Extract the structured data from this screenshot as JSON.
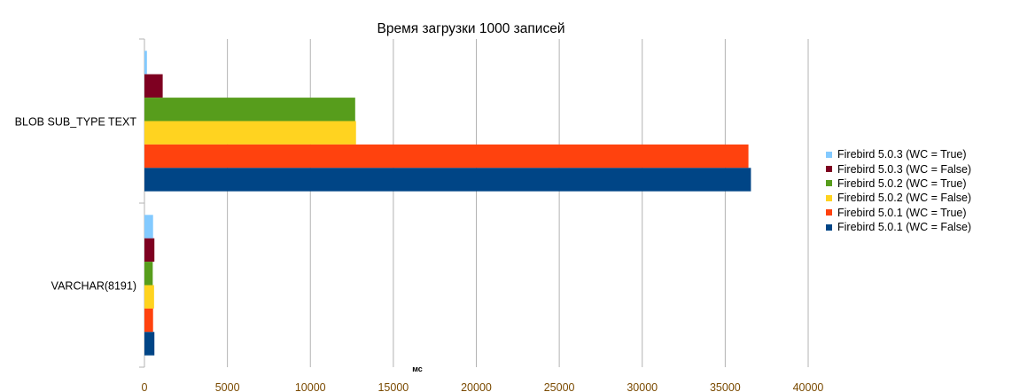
{
  "chart_data": {
    "type": "bar",
    "orientation": "horizontal",
    "title": "Время загрузки 1000 записей",
    "xlabel": "мс",
    "ylabel": "",
    "xlim": [
      0,
      40000
    ],
    "x_ticks": [
      0,
      5000,
      10000,
      15000,
      20000,
      25000,
      30000,
      35000,
      40000
    ],
    "grid": true,
    "legend_position": "right",
    "categories": [
      "BLOB SUB_TYPE TEXT",
      "VARCHAR(8191)"
    ],
    "series": [
      {
        "name": "Firebird 5.0.3 (WC = True)",
        "color": "#83caff",
        "values": [
          150,
          520
        ]
      },
      {
        "name": "Firebird 5.0.3 (WC = False)",
        "color": "#7e0021",
        "values": [
          1100,
          600
        ]
      },
      {
        "name": "Firebird 5.0.2 (WC = True)",
        "color": "#579d1c",
        "values": [
          12700,
          500
        ]
      },
      {
        "name": "Firebird 5.0.2 (WC = False)",
        "color": "#ffd320",
        "values": [
          12750,
          580
        ]
      },
      {
        "name": "Firebird 5.0.1 (WC = True)",
        "color": "#ff420e",
        "values": [
          36400,
          520
        ]
      },
      {
        "name": "Firebird 5.0.1 (WC = False)",
        "color": "#004586",
        "values": [
          36550,
          600
        ]
      }
    ]
  }
}
